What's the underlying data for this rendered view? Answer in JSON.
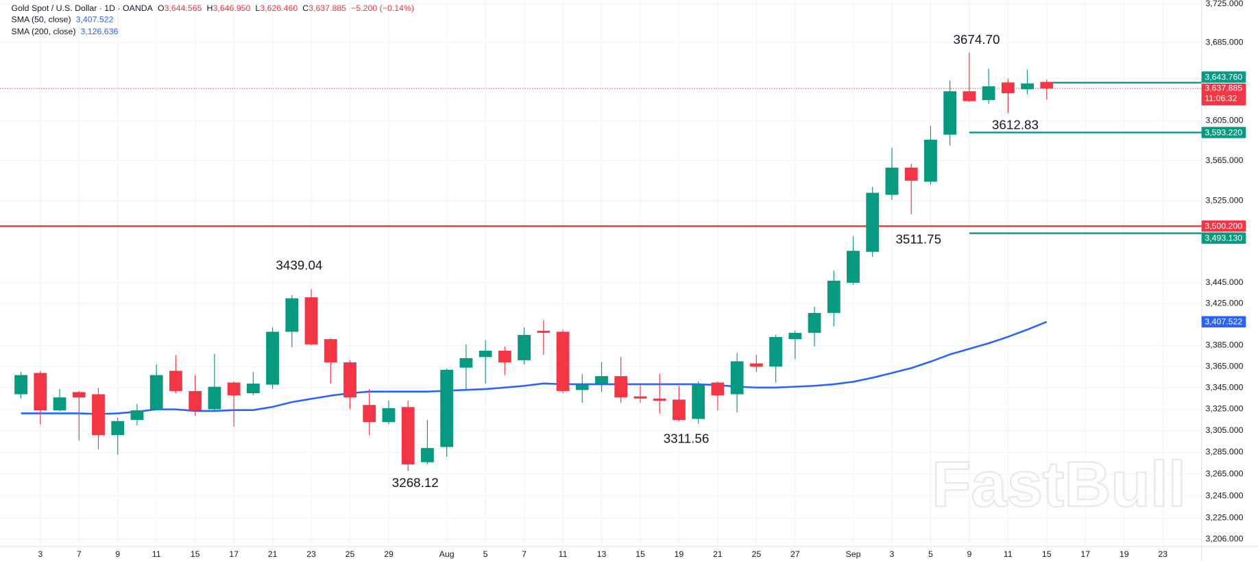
{
  "chart_data": {
    "type": "candlestick",
    "title": "Gold Spot / U.S. Dollar · 1D · OANDA",
    "ohlc_legend": [
      {
        "key": "O",
        "value": "3,644.565"
      },
      {
        "key": "H",
        "value": "3,646.950"
      },
      {
        "key": "L",
        "value": "3,626.460"
      },
      {
        "key": "C",
        "value": "3,637.885"
      }
    ],
    "change": "−5.200 (−0.14%)",
    "categories": [
      null,
      "3",
      null,
      "7",
      null,
      "9",
      null,
      "11",
      null,
      "15",
      null,
      "17",
      null,
      "21",
      null,
      "23",
      null,
      "25",
      null,
      "29",
      null,
      null,
      "Aug",
      null,
      "5",
      null,
      "7",
      null,
      "11",
      null,
      "13",
      null,
      "15",
      null,
      "19",
      null,
      "21",
      null,
      "25",
      null,
      "27",
      null,
      null,
      "Sep",
      null,
      "3",
      null,
      "5",
      null,
      "9",
      null,
      "11",
      null,
      "15",
      null,
      "17",
      null,
      "19",
      null,
      "23"
    ],
    "open": [
      3339,
      3359,
      3324,
      3341,
      3339,
      3301,
      3315,
      3325,
      3361,
      3342,
      3325,
      3350,
      3340,
      3348,
      3398,
      3431,
      3391,
      3369,
      3329,
      3313,
      3327,
      3276,
      3290,
      3364,
      3374,
      3380,
      3371,
      3399,
      3398,
      3343,
      3349,
      3356,
      3337,
      3335,
      3334,
      3316,
      3350,
      3339,
      3368,
      3365,
      3391,
      3397,
      3416,
      3445,
      3475,
      3531,
      3558,
      3544,
      3591,
      3635,
      3626,
      3644,
      3637,
      3644.565,
      null,
      null,
      null,
      null,
      null,
      null
    ],
    "high": [
      3360,
      3361,
      3344,
      3342,
      3345,
      3317,
      3330,
      3367,
      3376,
      3357,
      3377,
      3351,
      3360,
      3402,
      3433,
      3439.04,
      3392,
      3371,
      3344,
      3333,
      3333,
      3315,
      3363,
      3386,
      3390,
      3384,
      3402,
      3409,
      3400,
      3358,
      3369,
      3374,
      3348,
      3358,
      3347,
      3351,
      3351,
      3378,
      3376,
      3395,
      3399,
      3422,
      3457,
      3490,
      3539,
      3578,
      3562,
      3600,
      3646,
      3674.7,
      3658,
      3648,
      3657,
      3646.95,
      null,
      null,
      null,
      null,
      null,
      null
    ],
    "low": [
      3335,
      3311,
      3323,
      3296,
      3288,
      3283,
      3310,
      3324,
      3340,
      3319,
      3324,
      3309,
      3338,
      3344,
      3383,
      3385,
      3349,
      3325,
      3301,
      3311,
      3268.12,
      3274,
      3281,
      3343,
      3349,
      3357,
      3367,
      3376,
      3340,
      3331,
      3341,
      3331,
      3331,
      3321,
      3314,
      3311.56,
      3324,
      3322,
      3360,
      3350,
      3372,
      3384,
      3403,
      3443,
      3470,
      3526,
      3511.75,
      3541,
      3580,
      3624,
      3622,
      3612.83,
      3632,
      3626.46,
      null,
      null,
      null,
      null,
      null,
      null
    ],
    "close": [
      3357,
      3324,
      3336,
      3336,
      3301,
      3314,
      3324,
      3357,
      3342,
      3324,
      3346,
      3338,
      3349,
      3398,
      3430,
      3386,
      3369,
      3336,
      3313,
      3326,
      3274,
      3289,
      3362,
      3373,
      3380,
      3369,
      3395,
      3397,
      3342,
      3348,
      3356,
      3336,
      3335,
      3333,
      3315,
      3348,
      3338,
      3370,
      3365,
      3393,
      3397,
      3416,
      3447,
      3476,
      3533,
      3558,
      3545,
      3586,
      3635,
      3625,
      3640,
      3633,
      3643,
      3637.885,
      null,
      null,
      null,
      null,
      null,
      null
    ],
    "up_color": "#089981",
    "down_color": "#f23645",
    "indicators": [
      {
        "name": "SMA (50, close)",
        "color": "#2962ff",
        "value_label": "3,407.522",
        "values": [
          3321.2,
          3321.2,
          3321.2,
          3321.2,
          3320.5,
          3321.2,
          3322.7,
          3324.9,
          3324.9,
          3323.4,
          3323.4,
          3324.2,
          3324.2,
          3327.2,
          3331.7,
          3334.7,
          3337.7,
          3340.0,
          3341.5,
          3341.5,
          3341.5,
          3341.5,
          3342.3,
          3343.1,
          3343.8,
          3345.3,
          3346.9,
          3349.1,
          3348.4,
          3348.4,
          3348.4,
          3348.4,
          3348.4,
          3348.4,
          3348.4,
          3348.4,
          3347.6,
          3346.1,
          3345.3,
          3345.3,
          3346.1,
          3346.9,
          3348.4,
          3350.7,
          3354.5,
          3359.0,
          3363.6,
          3369.7,
          3376.5,
          3381.8,
          3387.1,
          3393.2,
          3400.1,
          3407.522,
          null,
          null,
          null,
          null,
          null,
          null
        ]
      },
      {
        "name": "SMA (200, close)",
        "color": "#2962ff",
        "value_label": "3,126.636"
      }
    ],
    "levels": [
      {
        "value": 3500.2,
        "label": "3,500.200",
        "color": "#f23645"
      },
      {
        "value": 3643.76,
        "label": "3,643.760",
        "color": "#089981"
      },
      {
        "value": 3593.22,
        "label": "3,593.220",
        "color": "#089981"
      },
      {
        "value": 3493.13,
        "label": "3,493.130",
        "color": "#089981"
      }
    ],
    "last_price": {
      "value": 3637.885,
      "label": "3,637.885"
    },
    "countdown": "11:06:32",
    "annotations": [
      "3674.70",
      "3612.83",
      "3511.75",
      "3439.04",
      "3311.56",
      "3268.12"
    ],
    "watermark": "FastBull",
    "log": true,
    "grid": true,
    "ylim": [
      3199.5,
      3729.2
    ],
    "yticks": [
      {
        "value": 3206,
        "label": "3,206.000"
      },
      {
        "value": 3225,
        "label": "3,225.000"
      },
      {
        "value": 3245,
        "label": "3,245.000"
      },
      {
        "value": 3265,
        "label": "3,265.000"
      },
      {
        "value": 3285,
        "label": "3,285.000"
      },
      {
        "value": 3305,
        "label": "3,305.000"
      },
      {
        "value": 3325,
        "label": "3,325.000"
      },
      {
        "value": 3345,
        "label": "3,345.000"
      },
      {
        "value": 3365,
        "label": "3,365.000"
      },
      {
        "value": 3385,
        "label": "3,385.000"
      },
      {
        "value": 3425,
        "label": "3,425.000"
      },
      {
        "value": 3445,
        "label": "3,445.000"
      },
      {
        "value": 3525,
        "label": "3,525.000"
      },
      {
        "value": 3565,
        "label": "3,565.000"
      },
      {
        "value": 3605,
        "label": "3,605.000"
      },
      {
        "value": 3685,
        "label": "3,685.000"
      },
      {
        "value": 3725,
        "label": "3,725.000"
      }
    ]
  }
}
